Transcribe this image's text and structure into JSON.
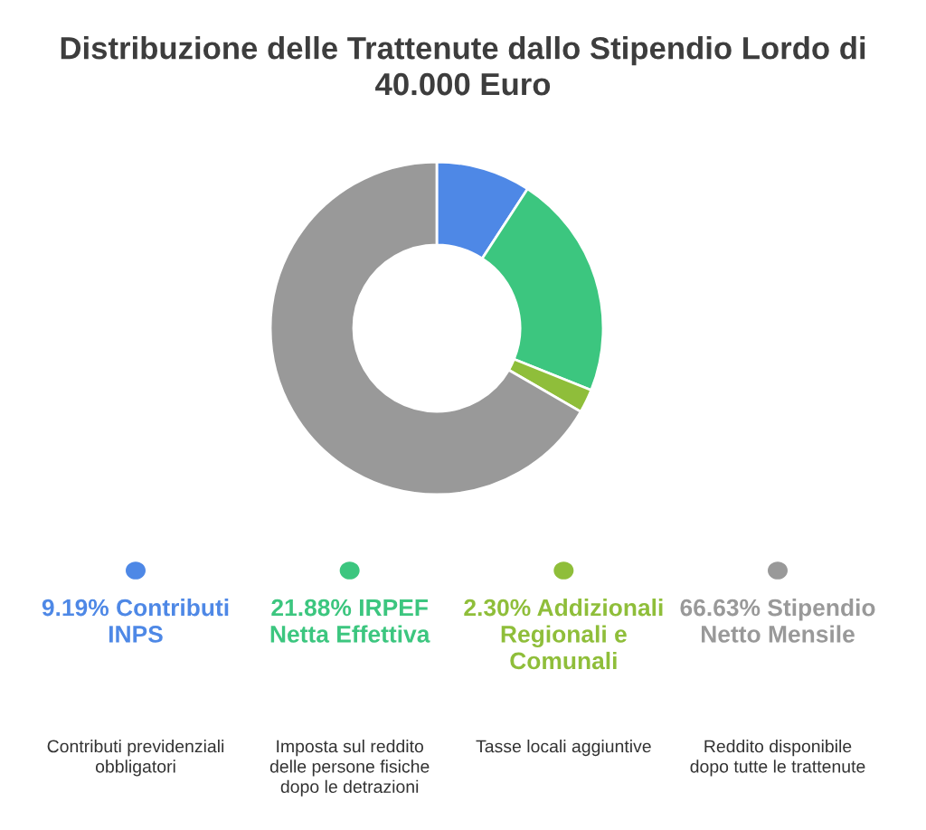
{
  "chart_data": {
    "type": "donut",
    "title": "Distribuzione delle Trattenute dallo Stipendio Lordo di 40.000 Euro",
    "categories": [
      "Contributi INPS",
      "IRPEF Netta Effettiva",
      "Addizionali Regionali e Comunali",
      "Stipendio Netto Mensile"
    ],
    "values": [
      9.19,
      21.88,
      2.3,
      66.63
    ],
    "value_labels": [
      "9.19%",
      "21.88%",
      "2.30%",
      "66.63%"
    ],
    "colors": [
      "#4e88e6",
      "#3cc67f",
      "#8fbe3a",
      "#999999"
    ],
    "annotations": [
      "Contributi previdenziali obbligatori",
      "Imposta sul reddito delle persone fisiche dopo le detrazioni",
      "Tasse locali aggiuntive",
      "Reddito disponibile dopo tutte le trattenute"
    ],
    "legend": "bottom"
  }
}
